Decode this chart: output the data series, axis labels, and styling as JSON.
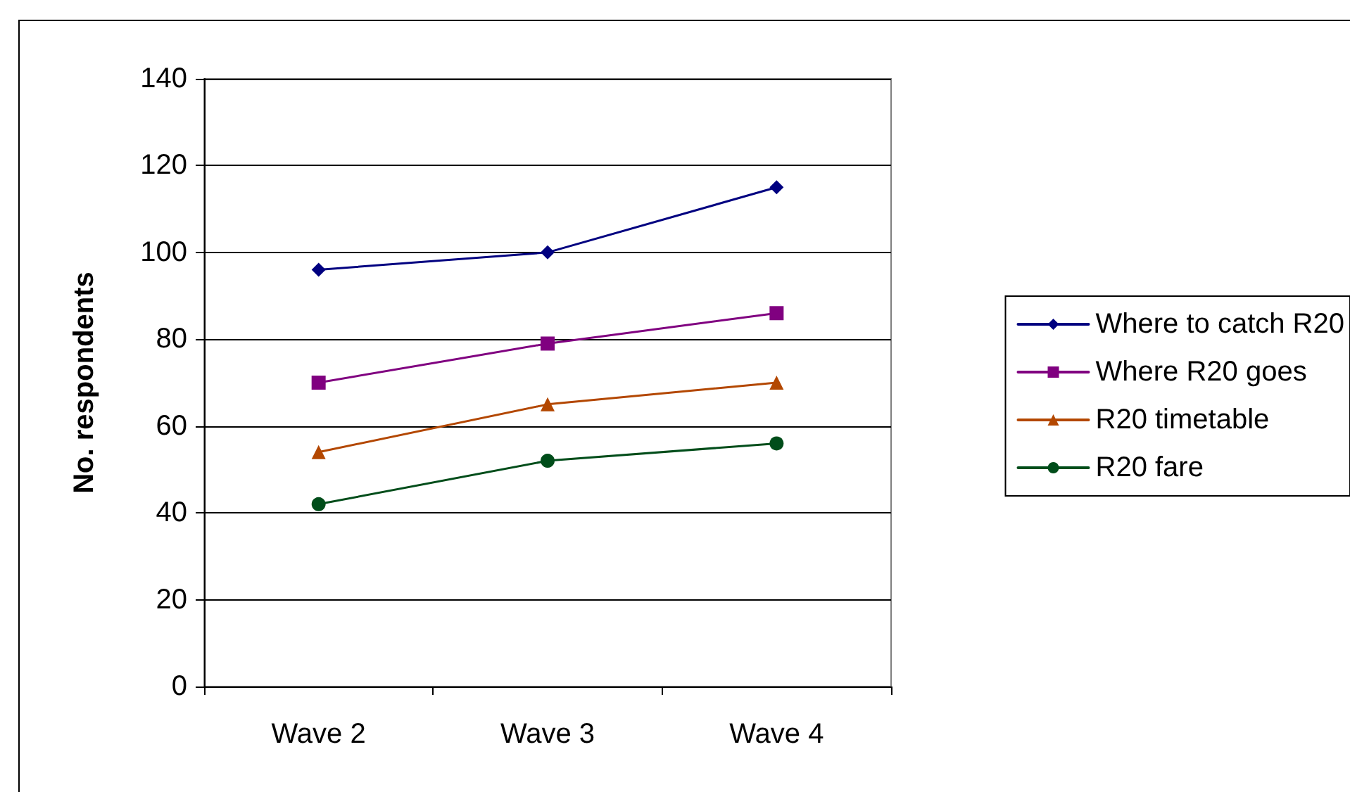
{
  "chart_data": {
    "type": "line",
    "ylabel": "No. respondents",
    "categories": [
      "Wave 2",
      "Wave 3",
      "Wave 4"
    ],
    "series": [
      {
        "name": "Where to catch R20",
        "color": "#000080",
        "marker": "diamond",
        "values": [
          96,
          100,
          115
        ]
      },
      {
        "name": "Where R20 goes",
        "color": "#800080",
        "marker": "square",
        "values": [
          70,
          79,
          86
        ]
      },
      {
        "name": "R20 timetable",
        "color": "#b34700",
        "marker": "triangle",
        "values": [
          54,
          65,
          70
        ]
      },
      {
        "name": "R20 fare",
        "color": "#004d1a",
        "marker": "circle",
        "values": [
          42,
          52,
          56
        ]
      }
    ],
    "ylim": [
      0,
      140
    ],
    "yticks": [
      0,
      20,
      40,
      60,
      80,
      100,
      120,
      140
    ],
    "grid": "y",
    "legend": "right",
    "line_style": "solid"
  }
}
